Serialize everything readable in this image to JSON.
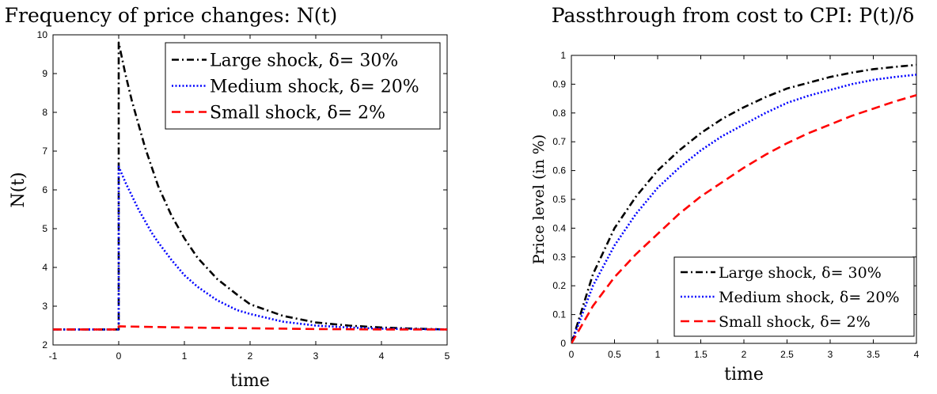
{
  "chart_data": [
    {
      "type": "line",
      "title": "Frequency of price changes: N(t)",
      "xlabel": "time",
      "ylabel": "N(t)",
      "xlim": [
        -1,
        5
      ],
      "ylim": [
        2,
        10
      ],
      "xticks": [
        -1,
        0,
        1,
        2,
        3,
        4,
        5
      ],
      "yticks": [
        2,
        3,
        4,
        5,
        6,
        7,
        8,
        9,
        10
      ],
      "legend_position": "top-right",
      "series": [
        {
          "name": "Large shock, δ= 30%",
          "color": "#000000",
          "style": "dash-dot",
          "x": [
            -1,
            0,
            0,
            0.1,
            0.2,
            0.3,
            0.4,
            0.5,
            0.6,
            0.8,
            1.0,
            1.2,
            1.5,
            1.8,
            2.0,
            2.5,
            3.0,
            3.5,
            4.0,
            4.5,
            5.0
          ],
          "y": [
            2.4,
            2.4,
            9.8,
            9.0,
            8.3,
            7.7,
            7.1,
            6.6,
            6.1,
            5.35,
            4.75,
            4.25,
            3.7,
            3.3,
            3.05,
            2.75,
            2.58,
            2.5,
            2.45,
            2.42,
            2.4
          ]
        },
        {
          "name": "Medium shock, δ= 20%",
          "color": "#0000ff",
          "style": "dotted",
          "x": [
            -1,
            0,
            0,
            0.1,
            0.2,
            0.3,
            0.4,
            0.5,
            0.6,
            0.8,
            1.0,
            1.2,
            1.5,
            1.8,
            2.0,
            2.5,
            3.0,
            3.5,
            4.0,
            4.5,
            5.0
          ],
          "y": [
            2.4,
            2.4,
            6.6,
            6.2,
            5.85,
            5.5,
            5.2,
            4.9,
            4.65,
            4.2,
            3.8,
            3.5,
            3.15,
            2.9,
            2.8,
            2.6,
            2.5,
            2.45,
            2.42,
            2.41,
            2.4
          ]
        },
        {
          "name": "Small shock, δ= 2%",
          "color": "#ff0000",
          "style": "dashed",
          "x": [
            -1,
            0,
            0,
            1,
            2,
            3,
            4,
            5
          ],
          "y": [
            2.4,
            2.4,
            2.48,
            2.45,
            2.43,
            2.41,
            2.4,
            2.4
          ]
        }
      ]
    },
    {
      "type": "line",
      "title": "Passthrough from cost to CPI: P(t)/δ",
      "xlabel": "time",
      "ylabel": "Price level (in %)",
      "xlim": [
        0,
        4
      ],
      "ylim": [
        0,
        1
      ],
      "xticks": [
        0,
        0.5,
        1,
        1.5,
        2,
        2.5,
        3,
        3.5,
        4
      ],
      "yticks": [
        0,
        0.1,
        0.2,
        0.3,
        0.4,
        0.5,
        0.6,
        0.7,
        0.8,
        0.9,
        1
      ],
      "legend_position": "bottom-right",
      "series": [
        {
          "name": "Large shock, δ= 30%",
          "color": "#000000",
          "style": "dash-dot",
          "x": [
            0,
            0.25,
            0.5,
            0.75,
            1.0,
            1.25,
            1.5,
            1.75,
            2.0,
            2.25,
            2.5,
            2.75,
            3.0,
            3.25,
            3.5,
            3.75,
            4.0
          ],
          "y": [
            0,
            0.24,
            0.4,
            0.51,
            0.6,
            0.67,
            0.73,
            0.78,
            0.82,
            0.855,
            0.885,
            0.905,
            0.925,
            0.94,
            0.952,
            0.96,
            0.967
          ]
        },
        {
          "name": "Medium shock, δ= 20%",
          "color": "#0000ff",
          "style": "dotted",
          "x": [
            0,
            0.25,
            0.5,
            0.75,
            1.0,
            1.25,
            1.5,
            1.75,
            2.0,
            2.25,
            2.5,
            2.75,
            3.0,
            3.25,
            3.5,
            3.75,
            4.0
          ],
          "y": [
            0,
            0.2,
            0.34,
            0.45,
            0.54,
            0.61,
            0.67,
            0.72,
            0.76,
            0.8,
            0.835,
            0.86,
            0.88,
            0.9,
            0.915,
            0.925,
            0.933
          ]
        },
        {
          "name": "Small shock, δ= 2%",
          "color": "#ff0000",
          "style": "dashed",
          "x": [
            0,
            0.25,
            0.5,
            0.75,
            1.0,
            1.25,
            1.5,
            1.75,
            2.0,
            2.25,
            2.5,
            2.75,
            3.0,
            3.25,
            3.5,
            3.75,
            4.0
          ],
          "y": [
            0,
            0.13,
            0.23,
            0.31,
            0.38,
            0.45,
            0.51,
            0.56,
            0.61,
            0.655,
            0.695,
            0.73,
            0.76,
            0.79,
            0.815,
            0.84,
            0.862
          ]
        }
      ]
    }
  ]
}
